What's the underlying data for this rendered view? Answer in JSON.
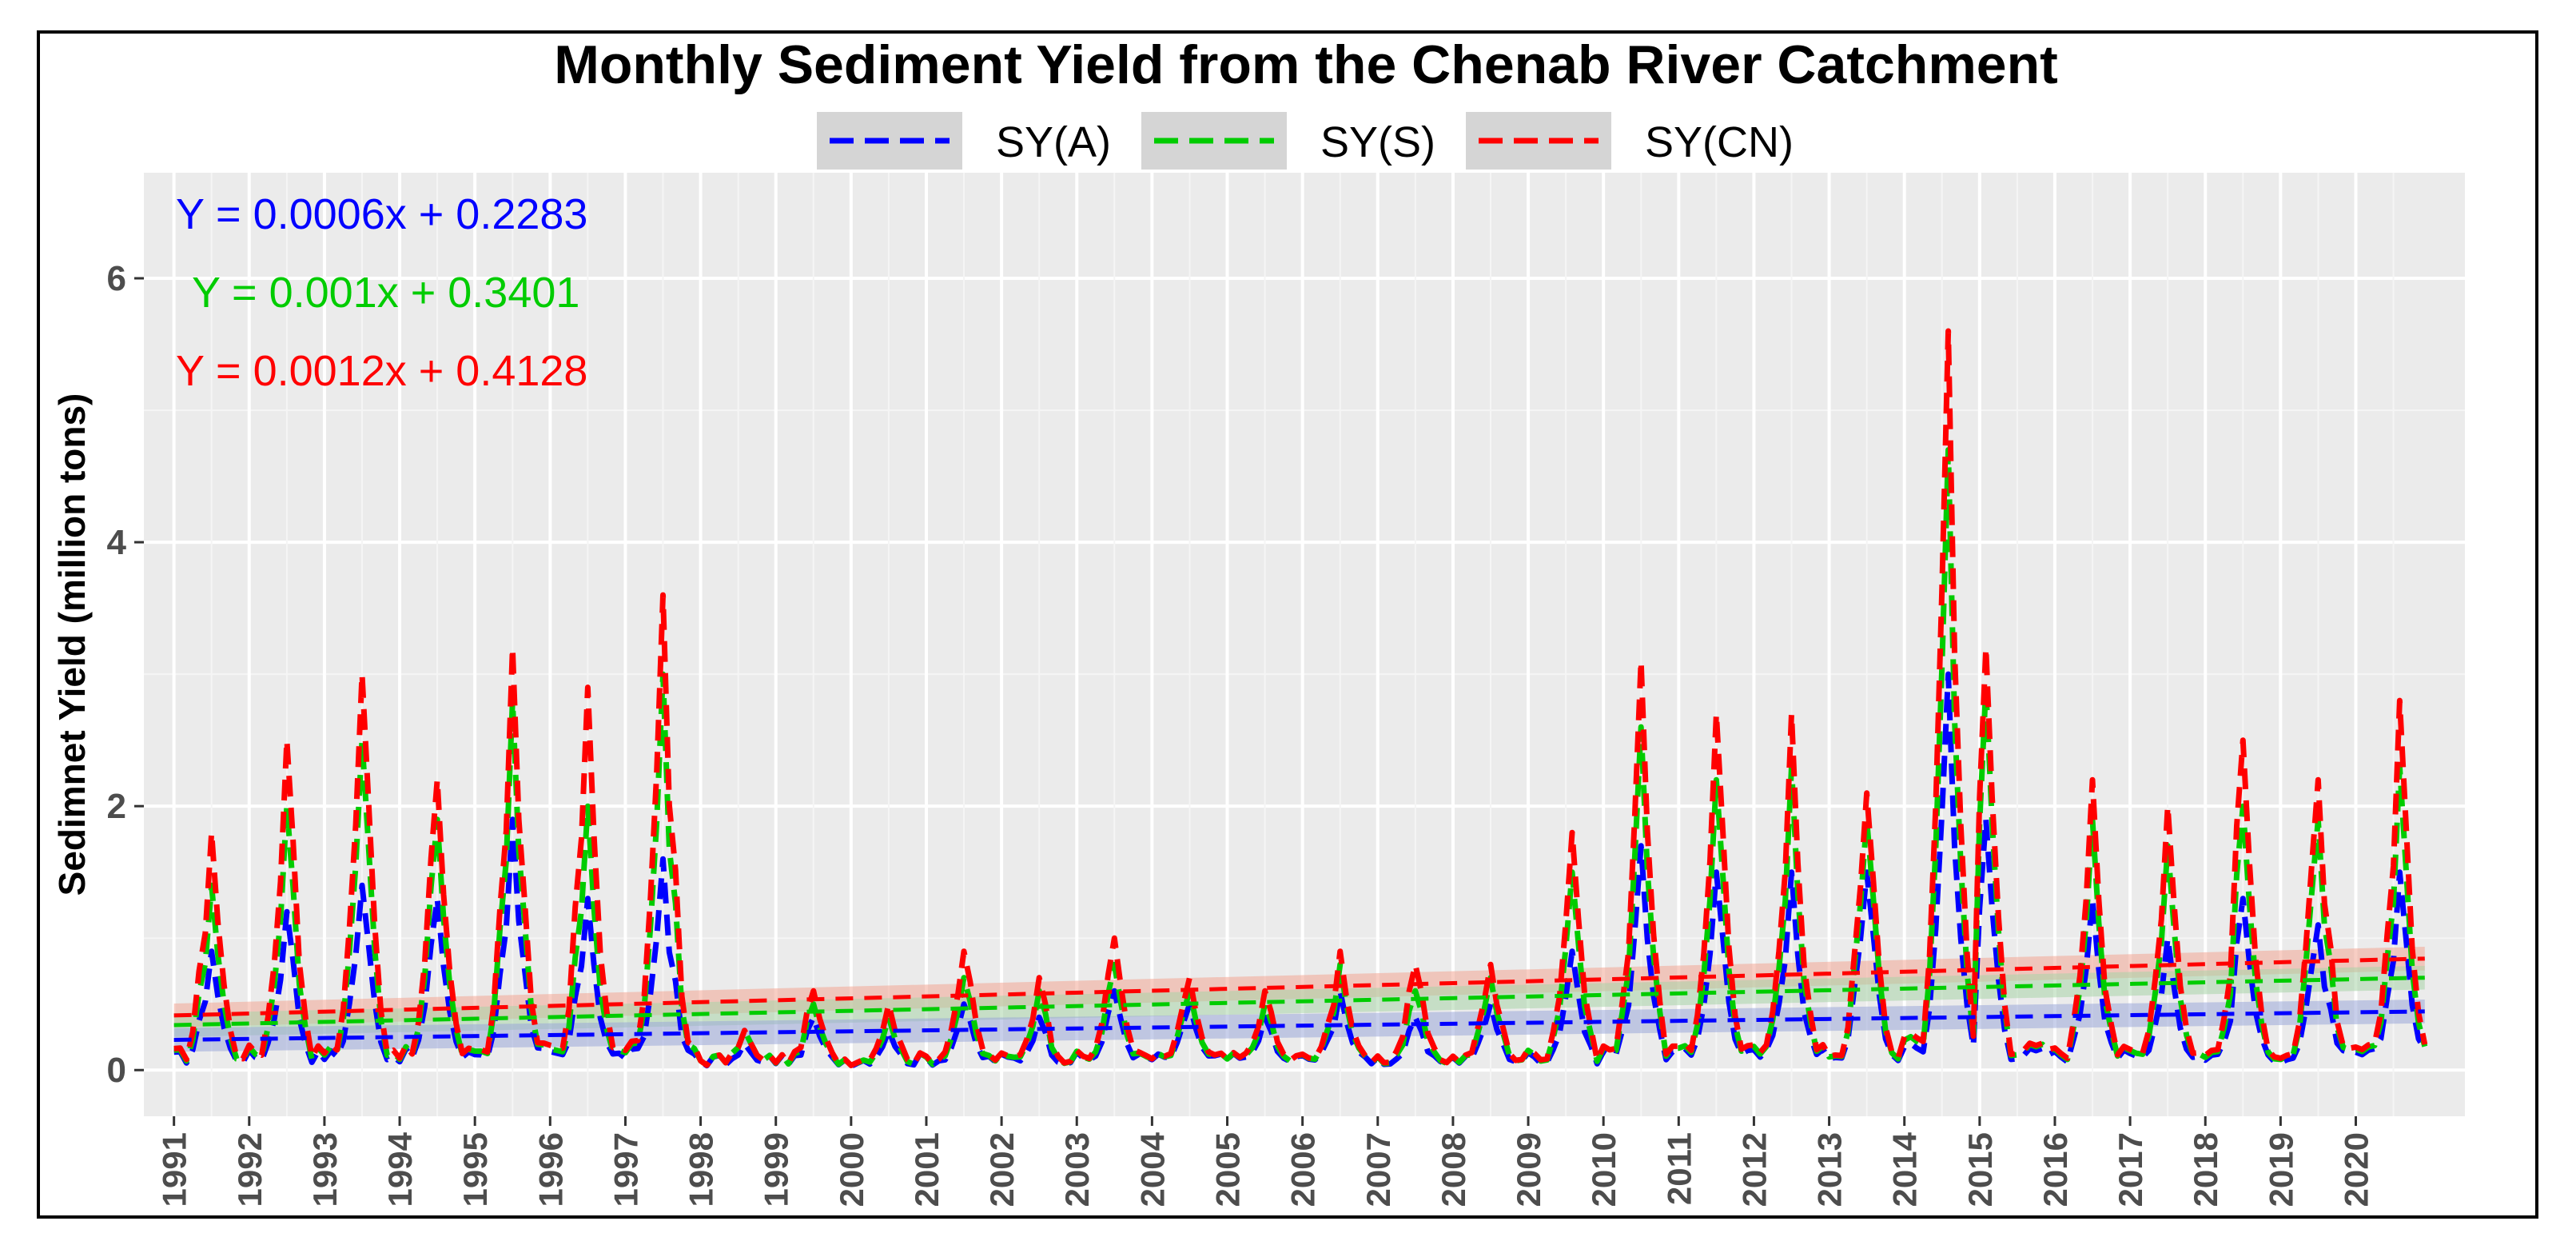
{
  "chart_data": {
    "type": "line",
    "title": "Monthly Sediment Yield from the Chenab River Catchment",
    "xlabel": "",
    "ylabel": "Sedimnet Yield (million tons)",
    "x_ticks": [
      "1991",
      "1992",
      "1993",
      "1994",
      "1995",
      "1996",
      "1997",
      "1998",
      "1999",
      "2000",
      "2001",
      "2002",
      "2003",
      "2004",
      "2005",
      "2006",
      "2007",
      "2008",
      "2009",
      "2010",
      "2011",
      "2012",
      "2013",
      "2014",
      "2015",
      "2016",
      "2017",
      "2018",
      "2019",
      "2020"
    ],
    "y_ticks": [
      0,
      2,
      4,
      6
    ],
    "xlim": [
      1990.6,
      2021.45
    ],
    "ylim": [
      -0.35,
      6.8
    ],
    "grid": true,
    "legend_position": "top",
    "annotations": [
      {
        "text": "Y = 0.0006x + 0.2283",
        "color": "#0000ff"
      },
      {
        "text": "Y = 0.001x + 0.3401",
        "color": "#00cc00"
      },
      {
        "text": "Y = 0.0012x + 0.4128",
        "color": "#ff0000"
      }
    ],
    "series": [
      {
        "name": "SY(A)",
        "color": "#0000ff",
        "trend": {
          "slope": 0.0006,
          "intercept": 0.2283
        },
        "annual_peak_month": [
          7,
          7,
          7,
          7,
          7,
          7,
          7,
          8,
          7,
          7,
          7,
          7,
          7,
          7,
          7,
          7,
          7,
          7,
          8,
          7,
          7,
          7,
          7,
          8,
          2,
          7,
          7,
          7,
          7,
          8
        ],
        "annual_peaks": [
          0.9,
          1.2,
          1.4,
          1.3,
          1.9,
          1.3,
          1.6,
          0.2,
          0.4,
          0.3,
          0.5,
          0.4,
          0.6,
          0.5,
          0.4,
          0.6,
          0.4,
          0.5,
          0.9,
          1.7,
          1.5,
          1.5,
          1.5,
          3.0,
          1.9,
          1.3,
          1.0,
          1.3,
          1.1,
          1.5
        ]
      },
      {
        "name": "SY(S)",
        "color": "#00cc00",
        "trend": {
          "slope": 0.001,
          "intercept": 0.3401
        },
        "annual_peak_month": [
          7,
          7,
          7,
          7,
          7,
          7,
          7,
          8,
          7,
          7,
          7,
          7,
          7,
          7,
          7,
          7,
          7,
          7,
          8,
          7,
          7,
          7,
          7,
          8,
          2,
          7,
          7,
          7,
          7,
          8
        ],
        "annual_peaks": [
          1.4,
          2.0,
          2.5,
          1.9,
          2.8,
          2.0,
          3.0,
          0.3,
          0.5,
          0.4,
          0.7,
          0.6,
          0.8,
          0.6,
          0.5,
          0.8,
          0.6,
          0.7,
          1.5,
          2.6,
          2.2,
          2.3,
          1.9,
          4.7,
          2.9,
          1.9,
          1.7,
          2.0,
          1.9,
          2.3
        ]
      },
      {
        "name": "SY(CN)",
        "color": "#ff0000",
        "trend": {
          "slope": 0.0012,
          "intercept": 0.4128
        },
        "annual_peak_month": [
          7,
          7,
          7,
          7,
          7,
          7,
          7,
          8,
          7,
          7,
          7,
          7,
          7,
          7,
          7,
          7,
          7,
          7,
          8,
          7,
          7,
          7,
          7,
          8,
          2,
          7,
          7,
          7,
          7,
          8
        ],
        "annual_peaks": [
          1.8,
          2.5,
          3.0,
          2.2,
          3.2,
          2.9,
          3.6,
          0.3,
          0.6,
          0.5,
          0.9,
          0.7,
          1.0,
          0.7,
          0.6,
          0.9,
          0.8,
          0.8,
          1.8,
          3.1,
          2.7,
          2.7,
          2.1,
          5.6,
          3.2,
          2.2,
          2.0,
          2.5,
          2.2,
          2.8
        ]
      }
    ]
  }
}
